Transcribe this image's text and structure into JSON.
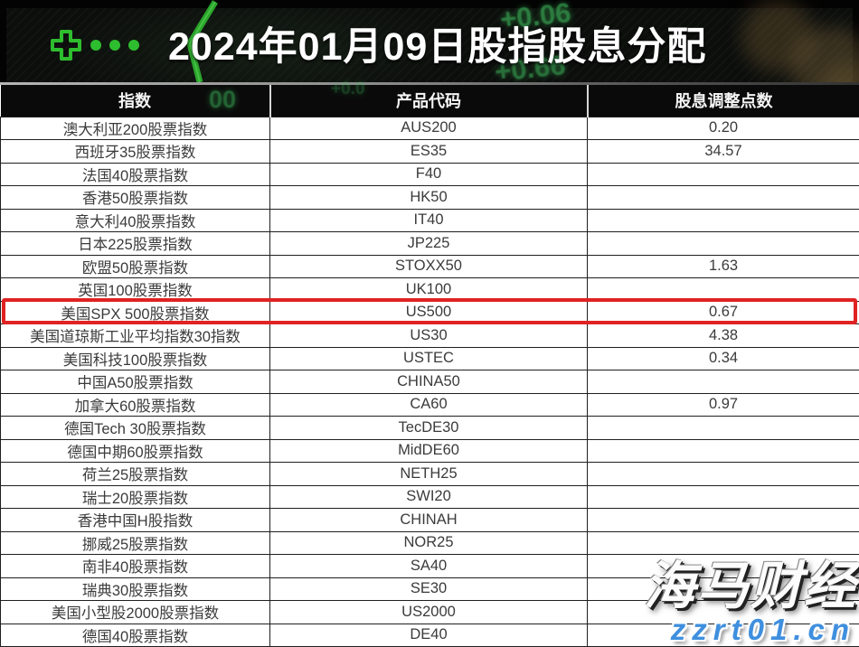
{
  "chart_data": {
    "type": "table",
    "title": "2024年01月09日股指股息分配",
    "columns": [
      "指数",
      "产品代码",
      "股息调整点数"
    ],
    "rows": [
      {
        "index_name": "澳大利亚200股票指数",
        "product_code": "AUS200",
        "dividend_points": "0.20"
      },
      {
        "index_name": "西班牙35股票指数",
        "product_code": "ES35",
        "dividend_points": "34.57"
      },
      {
        "index_name": "法国40股票指数",
        "product_code": "F40",
        "dividend_points": ""
      },
      {
        "index_name": "香港50股票指数",
        "product_code": "HK50",
        "dividend_points": ""
      },
      {
        "index_name": "意大利40股票指数",
        "product_code": "IT40",
        "dividend_points": ""
      },
      {
        "index_name": "日本225股票指数",
        "product_code": "JP225",
        "dividend_points": ""
      },
      {
        "index_name": "欧盟50股票指数",
        "product_code": "STOXX50",
        "dividend_points": "1.63"
      },
      {
        "index_name": "英国100股票指数",
        "product_code": "UK100",
        "dividend_points": ""
      },
      {
        "index_name": "美国SPX 500股票指数",
        "product_code": "US500",
        "dividend_points": "0.67"
      },
      {
        "index_name": "美国道琼斯工业平均指数30指数",
        "product_code": "US30",
        "dividend_points": "4.38"
      },
      {
        "index_name": "美国科技100股票指数",
        "product_code": "USTEC",
        "dividend_points": "0.34"
      },
      {
        "index_name": "中国A50股票指数",
        "product_code": "CHINA50",
        "dividend_points": ""
      },
      {
        "index_name": "加拿大60股票指数",
        "product_code": "CA60",
        "dividend_points": "0.97"
      },
      {
        "index_name": "德国Tech 30股票指数",
        "product_code": "TecDE30",
        "dividend_points": ""
      },
      {
        "index_name": "德国中期60股票指数",
        "product_code": "MidDE60",
        "dividend_points": ""
      },
      {
        "index_name": "荷兰25股票指数",
        "product_code": "NETH25",
        "dividend_points": ""
      },
      {
        "index_name": "瑞士20股票指数",
        "product_code": "SWI20",
        "dividend_points": ""
      },
      {
        "index_name": "香港中国H股指数",
        "product_code": "CHINAH",
        "dividend_points": ""
      },
      {
        "index_name": "挪威25股票指数",
        "product_code": "NOR25",
        "dividend_points": ""
      },
      {
        "index_name": "南非40股票指数",
        "product_code": "SA40",
        "dividend_points": ""
      },
      {
        "index_name": "瑞典30股票指数",
        "product_code": "SE30",
        "dividend_points": ""
      },
      {
        "index_name": "美国小型股2000股票指数",
        "product_code": "US2000",
        "dividend_points": ""
      },
      {
        "index_name": "德国40股票指数",
        "product_code": "DE40",
        "dividend_points": ""
      }
    ],
    "highlighted_row_index": 8,
    "highlighted_row_code": "US500"
  },
  "decorations": {
    "ticker_fragments": [
      "+0.06",
      "+0.66",
      "00",
      "+0.0"
    ],
    "accent_green": "#2ebd2e",
    "ticker_green": "#3fbf5f",
    "highlight_red": "#e02222"
  },
  "watermark": {
    "brand": "海马财经",
    "site": "zzrt01.cn",
    "site_color": "#3f8fde"
  }
}
